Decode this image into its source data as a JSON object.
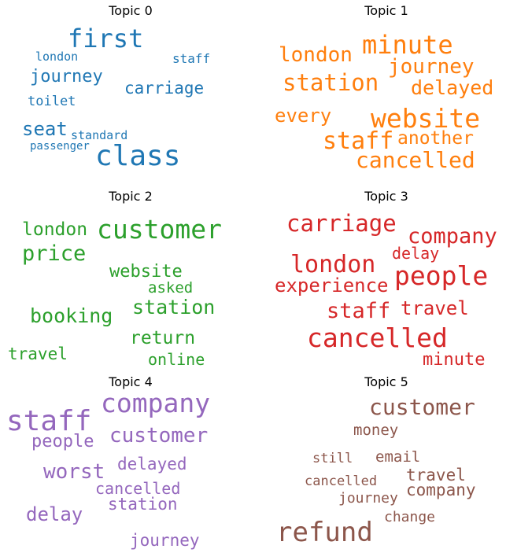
{
  "chart_data": [
    {
      "type": "wordcloud",
      "title": "Topic 0",
      "color": "#1f77b4",
      "words": [
        {
          "text": "first",
          "weight": 32
        },
        {
          "text": "journey",
          "weight": 22
        },
        {
          "text": "carriage",
          "weight": 21
        },
        {
          "text": "class",
          "weight": 36
        },
        {
          "text": "seat",
          "weight": 24
        },
        {
          "text": "toilet",
          "weight": 17
        },
        {
          "text": "london",
          "weight": 15
        },
        {
          "text": "staff",
          "weight": 16
        },
        {
          "text": "standard",
          "weight": 15
        },
        {
          "text": "passenger",
          "weight": 14
        }
      ]
    },
    {
      "type": "wordcloud",
      "title": "Topic 1",
      "color": "#ff7f0e",
      "words": [
        {
          "text": "minute",
          "weight": 32
        },
        {
          "text": "london",
          "weight": 26
        },
        {
          "text": "station",
          "weight": 29
        },
        {
          "text": "journey",
          "weight": 26
        },
        {
          "text": "delayed",
          "weight": 25
        },
        {
          "text": "website",
          "weight": 33
        },
        {
          "text": "every",
          "weight": 24
        },
        {
          "text": "staff",
          "weight": 30
        },
        {
          "text": "another",
          "weight": 23
        },
        {
          "text": "cancelled",
          "weight": 28
        }
      ]
    },
    {
      "type": "wordcloud",
      "title": "Topic 2",
      "color": "#2ca02c",
      "words": [
        {
          "text": "customer",
          "weight": 33
        },
        {
          "text": "london",
          "weight": 23
        },
        {
          "text": "price",
          "weight": 27
        },
        {
          "text": "website",
          "weight": 22
        },
        {
          "text": "asked",
          "weight": 19
        },
        {
          "text": "station",
          "weight": 25
        },
        {
          "text": "booking",
          "weight": 25
        },
        {
          "text": "return",
          "weight": 23
        },
        {
          "text": "travel",
          "weight": 21
        },
        {
          "text": "online",
          "weight": 20
        }
      ]
    },
    {
      "type": "wordcloud",
      "title": "Topic 3",
      "color": "#d62728",
      "words": [
        {
          "text": "carriage",
          "weight": 29
        },
        {
          "text": "company",
          "weight": 27
        },
        {
          "text": "london",
          "weight": 30
        },
        {
          "text": "delay",
          "weight": 20
        },
        {
          "text": "people",
          "weight": 33
        },
        {
          "text": "experience",
          "weight": 24
        },
        {
          "text": "staff",
          "weight": 27
        },
        {
          "text": "travel",
          "weight": 24
        },
        {
          "text": "cancelled",
          "weight": 33
        },
        {
          "text": "minute",
          "weight": 22
        }
      ]
    },
    {
      "type": "wordcloud",
      "title": "Topic 4",
      "color": "#9467bd",
      "words": [
        {
          "text": "staff",
          "weight": 36
        },
        {
          "text": "company",
          "weight": 33
        },
        {
          "text": "customer",
          "weight": 26
        },
        {
          "text": "people",
          "weight": 22
        },
        {
          "text": "worst",
          "weight": 26
        },
        {
          "text": "delayed",
          "weight": 21
        },
        {
          "text": "cancelled",
          "weight": 20
        },
        {
          "text": "station",
          "weight": 21
        },
        {
          "text": "delay",
          "weight": 24
        },
        {
          "text": "journey",
          "weight": 21
        }
      ]
    },
    {
      "type": "wordcloud",
      "title": "Topic 5",
      "color": "#8c564b",
      "words": [
        {
          "text": "customer",
          "weight": 28
        },
        {
          "text": "money",
          "weight": 19
        },
        {
          "text": "still",
          "weight": 17
        },
        {
          "text": "email",
          "weight": 19
        },
        {
          "text": "travel",
          "weight": 21
        },
        {
          "text": "cancelled",
          "weight": 17
        },
        {
          "text": "company",
          "weight": 21
        },
        {
          "text": "journey",
          "weight": 18
        },
        {
          "text": "change",
          "weight": 18
        },
        {
          "text": "refund",
          "weight": 34
        }
      ]
    }
  ]
}
